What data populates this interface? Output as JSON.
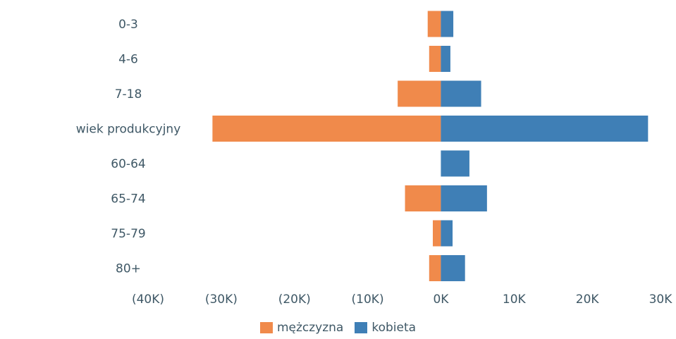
{
  "chart_data": {
    "type": "bar",
    "orientation": "horizontal",
    "categories": [
      "0-3",
      "4-6",
      "7-18",
      "wiek produkcyjny",
      "60-64",
      "65-74",
      "75-79",
      "80+"
    ],
    "series": [
      {
        "name": "mężczyzna",
        "color": "#f08a4b",
        "values": [
          -1800,
          -1600,
          -5900,
          -31200,
          0,
          -4900,
          -1100,
          -1600
        ]
      },
      {
        "name": "kobieta",
        "color": "#3f7fb6",
        "values": [
          1700,
          1300,
          5500,
          28300,
          3900,
          6300,
          1600,
          3300
        ]
      }
    ],
    "xlim": [
      -40000,
      30000
    ],
    "x_ticks": [
      -40000,
      -30000,
      -20000,
      -10000,
      0,
      10000,
      20000,
      30000
    ],
    "x_tick_labels": [
      "(40K)",
      "(30K)",
      "(20K)",
      "(10K)",
      "0K",
      "10K",
      "20K",
      "30K"
    ],
    "legend_position": "bottom-center",
    "grid": false,
    "xlabel": "",
    "ylabel": "",
    "title": ""
  },
  "legend": {
    "male_label": "mężczyzna",
    "female_label": "kobieta"
  }
}
